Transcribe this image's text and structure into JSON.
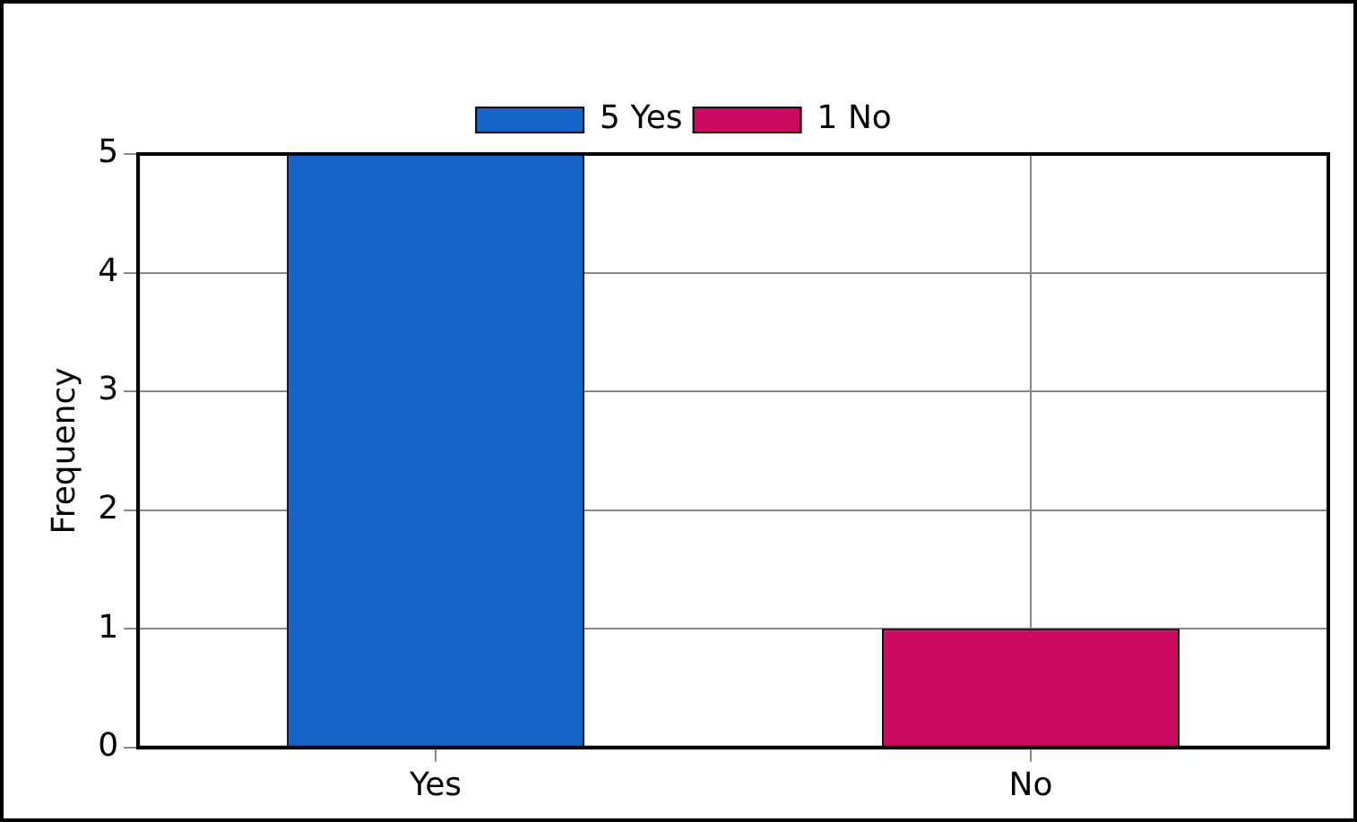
{
  "chart_data": {
    "type": "bar",
    "ylabel": "Frequency",
    "categories": [
      "Yes",
      "No"
    ],
    "series": [
      {
        "name": "5 Yes",
        "color": "#1565c8",
        "values": [
          5,
          null
        ]
      },
      {
        "name": "1 No",
        "color": "#cc0a62",
        "values": [
          null,
          1
        ]
      }
    ],
    "ylim": [
      0,
      5
    ],
    "yticks": [
      0,
      1,
      2,
      3,
      4,
      5
    ],
    "grid": true,
    "legend": "top"
  }
}
